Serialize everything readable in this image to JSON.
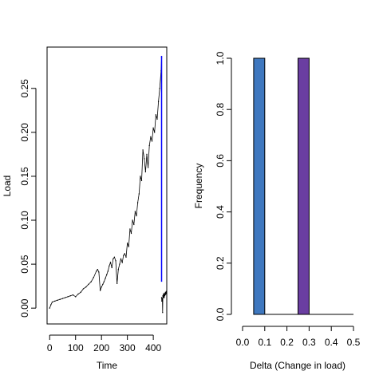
{
  "chart_data": [
    {
      "type": "scatter",
      "xlabel": "Time",
      "ylabel": "Load",
      "xlim": [
        -10,
        452
      ],
      "ylim": [
        -0.018,
        0.297
      ],
      "x_ticks": [
        0,
        100,
        200,
        300,
        400
      ],
      "y_ticks": [
        0.0,
        0.05,
        0.1,
        0.15,
        0.2,
        0.25
      ],
      "x_tick_labels": [
        "0",
        "100",
        "200",
        "300",
        "400"
      ],
      "y_tick_labels": [
        "0.00",
        "0.05",
        "0.10",
        "0.15",
        "0.20",
        "0.25"
      ],
      "grid": false,
      "point_color": "#000000",
      "highlight_color": "#0000ff",
      "series": [
        {
          "values_x": [
            0,
            5,
            10,
            20,
            30,
            40,
            50,
            60,
            70,
            80,
            90,
            100,
            110,
            120,
            130,
            140,
            150,
            160,
            170,
            180,
            185,
            190,
            195,
            200,
            205,
            210,
            215,
            220,
            225,
            230,
            235,
            240,
            245,
            250,
            255,
            260,
            265,
            270,
            275,
            280,
            285,
            290,
            295,
            300,
            305,
            310,
            315,
            320,
            325,
            330,
            335,
            340,
            345,
            350,
            355,
            360,
            365,
            370,
            375,
            380,
            385,
            390,
            395,
            400,
            405,
            410,
            415,
            420,
            425,
            430,
            432
          ],
          "values_y": [
            0.0,
            0.004,
            0.007,
            0.008,
            0.009,
            0.01,
            0.011,
            0.012,
            0.013,
            0.014,
            0.015,
            0.013,
            0.016,
            0.018,
            0.022,
            0.024,
            0.027,
            0.03,
            0.035,
            0.042,
            0.044,
            0.041,
            0.02,
            0.024,
            0.027,
            0.03,
            0.034,
            0.038,
            0.042,
            0.048,
            0.052,
            0.046,
            0.056,
            0.058,
            0.054,
            0.028,
            0.044,
            0.05,
            0.056,
            0.052,
            0.06,
            0.062,
            0.058,
            0.074,
            0.07,
            0.09,
            0.085,
            0.1,
            0.095,
            0.11,
            0.105,
            0.12,
            0.13,
            0.15,
            0.145,
            0.18,
            0.17,
            0.155,
            0.175,
            0.16,
            0.185,
            0.195,
            0.19,
            0.205,
            0.2,
            0.22,
            0.215,
            0.235,
            0.25,
            0.27,
            0.285
          ]
        },
        {
          "values_x": [
            432,
            433,
            434,
            435,
            436,
            437,
            438,
            439,
            440,
            441,
            442,
            443,
            444,
            445,
            446,
            447,
            448,
            449,
            450
          ],
          "values_y": [
            0.012,
            0.008,
            0.01,
            0.011,
            -0.005,
            0.014,
            0.012,
            0.016,
            0.013,
            0.015,
            0.012,
            0.017,
            0.014,
            0.016,
            0.015,
            0.018,
            0.016,
            0.017,
            0.019
          ]
        },
        {
          "values_x": [
            432,
            432
          ],
          "values_y": [
            0.03,
            0.287
          ]
        }
      ]
    },
    {
      "type": "bar",
      "xlabel": "Delta (Change in load)",
      "ylabel": "Frequency",
      "xlim": [
        0.0,
        0.5
      ],
      "ylim": [
        0.0,
        1.0
      ],
      "x_ticks": [
        0.0,
        0.1,
        0.2,
        0.3,
        0.4,
        0.5
      ],
      "y_ticks": [
        0.0,
        0.2,
        0.4,
        0.6,
        0.8,
        1.0
      ],
      "x_tick_labels": [
        "0.0",
        "0.1",
        "0.2",
        "0.3",
        "0.4",
        "0.5"
      ],
      "y_tick_labels": [
        "0.0",
        "0.2",
        "0.4",
        "0.6",
        "0.8",
        "1.0"
      ],
      "grid": false,
      "bins": [
        {
          "from": 0.05,
          "to": 0.1,
          "value": 1,
          "color": "#3f78bf"
        },
        {
          "from": 0.1,
          "to": 0.15,
          "value": 0,
          "color": "#3f78bf"
        },
        {
          "from": 0.15,
          "to": 0.2,
          "value": 0,
          "color": "#3f78bf"
        },
        {
          "from": 0.2,
          "to": 0.25,
          "value": 0,
          "color": "#3f78bf"
        },
        {
          "from": 0.25,
          "to": 0.3,
          "value": 1,
          "color": "#6a3ea1"
        },
        {
          "from": 0.3,
          "to": 0.35,
          "value": 0,
          "color": "#6a3ea1"
        },
        {
          "from": 0.35,
          "to": 0.4,
          "value": 0,
          "color": "#6a3ea1"
        },
        {
          "from": 0.4,
          "to": 0.45,
          "value": 0,
          "color": "#6a3ea1"
        },
        {
          "from": 0.45,
          "to": 0.5,
          "value": 0,
          "color": "#6a3ea1"
        }
      ]
    }
  ]
}
